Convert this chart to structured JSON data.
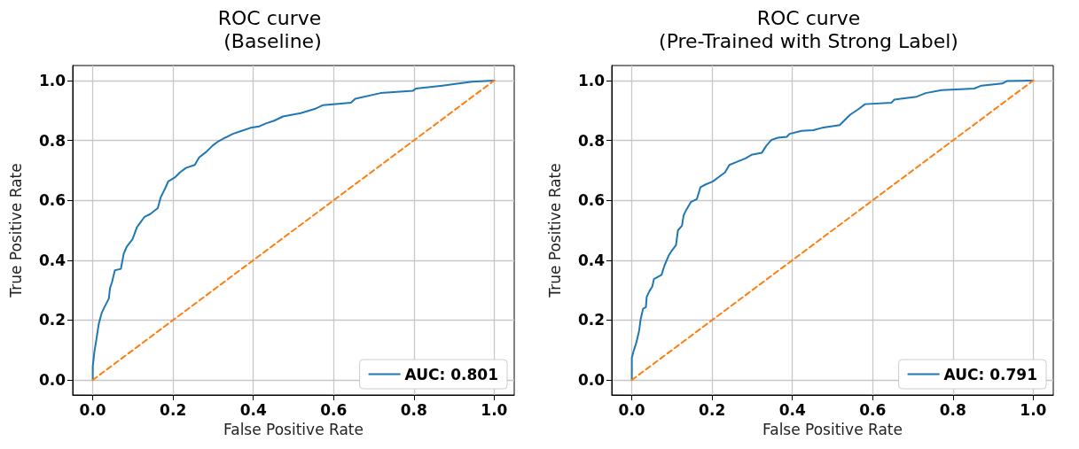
{
  "chart_data": [
    {
      "type": "line",
      "title": "ROC curve\n (Baseline)",
      "xlabel": "False Positive Rate",
      "ylabel": "True Positive Rate",
      "xlim": [
        -0.05,
        1.05
      ],
      "ylim": [
        -0.05,
        1.05
      ],
      "xticks": [
        {
          "value": 0,
          "label": "0.0"
        },
        {
          "value": 0.2,
          "label": "0.2"
        },
        {
          "value": 0.4,
          "label": "0.4"
        },
        {
          "value": 0.6,
          "label": "0.6"
        },
        {
          "value": 0.8,
          "label": "0.8"
        },
        {
          "value": 1,
          "label": "1.0"
        }
      ],
      "yticks": [
        {
          "value": 0,
          "label": "0.0"
        },
        {
          "value": 0.2,
          "label": "0.2"
        },
        {
          "value": 0.4,
          "label": "0.4"
        },
        {
          "value": 0.6,
          "label": "0.6"
        },
        {
          "value": 0.8,
          "label": "0.8"
        },
        {
          "value": 1,
          "label": "1.0"
        }
      ],
      "grid": true,
      "legend": "bottom right",
      "marker": "none",
      "series": [
        {
          "name": "AUC: 0.801",
          "color": "#1f77b4",
          "line_style": "solid",
          "x": [
            0,
            0,
            0.004,
            0.01,
            0.015,
            0.022,
            0.029,
            0.04,
            0.043,
            0.048,
            0.055,
            0.07,
            0.077,
            0.085,
            0.099,
            0.11,
            0.118,
            0.129,
            0.143,
            0.162,
            0.169,
            0.18,
            0.188,
            0.206,
            0.217,
            0.232,
            0.254,
            0.265,
            0.283,
            0.298,
            0.313,
            0.327,
            0.349,
            0.371,
            0.393,
            0.415,
            0.43,
            0.452,
            0.474,
            0.518,
            0.555,
            0.574,
            0.643,
            0.654,
            0.717,
            0.798,
            0.805,
            0.871,
            0.945,
            1
          ],
          "values": [
            0,
            0.045,
            0.094,
            0.144,
            0.188,
            0.223,
            0.243,
            0.272,
            0.307,
            0.327,
            0.366,
            0.371,
            0.421,
            0.446,
            0.47,
            0.51,
            0.525,
            0.545,
            0.554,
            0.574,
            0.609,
            0.639,
            0.663,
            0.678,
            0.693,
            0.708,
            0.718,
            0.743,
            0.762,
            0.782,
            0.797,
            0.807,
            0.822,
            0.832,
            0.842,
            0.847,
            0.856,
            0.866,
            0.88,
            0.891,
            0.906,
            0.918,
            0.926,
            0.939,
            0.958,
            0.966,
            0.973,
            0.983,
            0.996,
            1
          ]
        },
        {
          "color": "#ff7f0e",
          "line_style": "dashed",
          "x": [
            0,
            1
          ],
          "values": [
            0,
            1
          ]
        }
      ]
    },
    {
      "type": "line",
      "title": "ROC curve\n(Pre-Trained with Strong Label)",
      "xlabel": "False Positive Rate",
      "ylabel": "True Positive Rate",
      "xlim": [
        -0.05,
        1.05
      ],
      "ylim": [
        -0.05,
        1.05
      ],
      "xticks": [
        {
          "value": 0,
          "label": "0.0"
        },
        {
          "value": 0.2,
          "label": "0.2"
        },
        {
          "value": 0.4,
          "label": "0.4"
        },
        {
          "value": 0.6,
          "label": "0.6"
        },
        {
          "value": 0.8,
          "label": "0.8"
        },
        {
          "value": 1,
          "label": "1.0"
        }
      ],
      "yticks": [
        {
          "value": 0,
          "label": "0.0"
        },
        {
          "value": 0.2,
          "label": "0.2"
        },
        {
          "value": 0.4,
          "label": "0.4"
        },
        {
          "value": 0.6,
          "label": "0.6"
        },
        {
          "value": 0.8,
          "label": "0.8"
        },
        {
          "value": 1,
          "label": "1.0"
        }
      ],
      "grid": true,
      "legend": "bottom right",
      "marker": "none",
      "series": [
        {
          "name": "AUC: 0.791",
          "color": "#1f77b4",
          "line_style": "solid",
          "x": [
            0,
            0,
            0.005,
            0.011,
            0.018,
            0.022,
            0.028,
            0.035,
            0.037,
            0.044,
            0.051,
            0.055,
            0.074,
            0.081,
            0.092,
            0.099,
            0.11,
            0.115,
            0.125,
            0.129,
            0.136,
            0.147,
            0.162,
            0.171,
            0.184,
            0.202,
            0.217,
            0.232,
            0.243,
            0.261,
            0.283,
            0.298,
            0.324,
            0.335,
            0.348,
            0.364,
            0.386,
            0.393,
            0.423,
            0.452,
            0.474,
            0.518,
            0.529,
            0.544,
            0.563,
            0.581,
            0.647,
            0.654,
            0.71,
            0.732,
            0.772,
            0.853,
            0.871,
            0.923,
            0.934,
            1
          ],
          "values": [
            0,
            0.074,
            0.099,
            0.124,
            0.163,
            0.203,
            0.238,
            0.243,
            0.277,
            0.297,
            0.312,
            0.337,
            0.351,
            0.381,
            0.416,
            0.431,
            0.45,
            0.5,
            0.515,
            0.55,
            0.569,
            0.594,
            0.604,
            0.644,
            0.653,
            0.663,
            0.678,
            0.693,
            0.718,
            0.728,
            0.74,
            0.752,
            0.759,
            0.782,
            0.802,
            0.809,
            0.812,
            0.822,
            0.832,
            0.834,
            0.842,
            0.851,
            0.866,
            0.886,
            0.903,
            0.921,
            0.926,
            0.936,
            0.946,
            0.958,
            0.968,
            0.973,
            0.983,
            0.99,
            0.998,
            1
          ]
        },
        {
          "color": "#ff7f0e",
          "line_style": "dashed",
          "x": [
            0,
            1
          ],
          "values": [
            0,
            1
          ]
        }
      ]
    }
  ]
}
